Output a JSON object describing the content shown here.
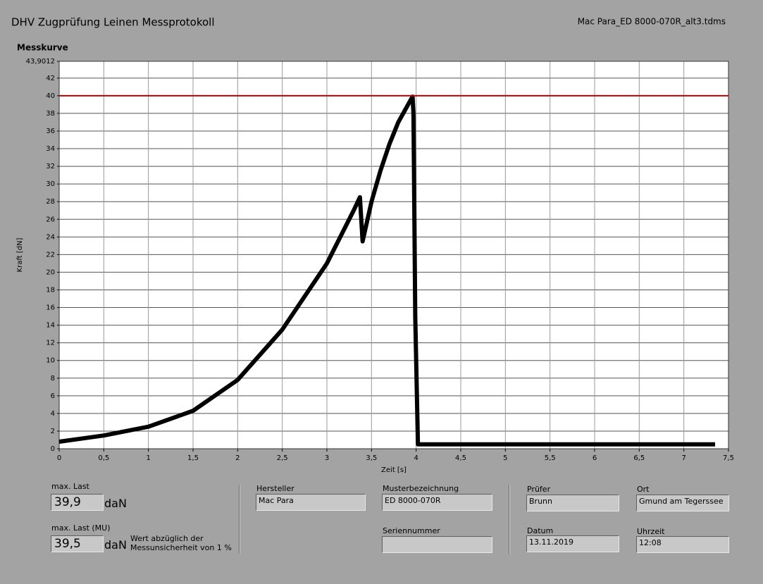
{
  "window": {
    "title": "DHV Zugprüfung Leinen Messprotokoll",
    "file": "Mac Para_ED 8000-070R_alt3.tdms"
  },
  "chart_data": {
    "type": "line",
    "title": "Messkurve",
    "x_label": "Zeit [s]",
    "y_label": "Kraft [dN]",
    "xlim": [
      0,
      7.5
    ],
    "ylim": [
      0,
      43.9012
    ],
    "xticks": [
      0,
      {
        "value": 0.5,
        "label": "0,5"
      },
      1,
      {
        "value": 1.5,
        "label": "1,5"
      },
      2,
      {
        "value": 2.5,
        "label": "2,5"
      },
      3,
      {
        "value": 3.5,
        "label": "3,5"
      },
      4,
      {
        "value": 4.5,
        "label": "4,5"
      },
      5,
      {
        "value": 5.5,
        "label": "5,5"
      },
      6,
      {
        "value": 6.5,
        "label": "6,5"
      },
      7,
      {
        "value": 7.5,
        "label": "7,5"
      }
    ],
    "yticks": [
      0,
      2,
      4,
      6,
      8,
      10,
      12,
      14,
      16,
      18,
      20,
      22,
      24,
      26,
      28,
      30,
      32,
      34,
      36,
      38,
      40,
      42,
      {
        "value": 43.9012,
        "label": "43,9012"
      }
    ],
    "grid": true,
    "series": [
      {
        "color": "#000000",
        "x": [
          0,
          0.5,
          1,
          1.5,
          2,
          2.5,
          3,
          3.3,
          3.37,
          3.4,
          3.5,
          3.6,
          3.7,
          3.8,
          3.96,
          3.97,
          3.99,
          4.02,
          4.5,
          5,
          6,
          7,
          7.35
        ],
        "values": [
          0.8,
          1.5,
          2.5,
          4.3,
          7.8,
          13.5,
          21,
          27,
          28.5,
          23.5,
          28,
          31.5,
          34.5,
          37,
          39.9,
          38,
          15,
          0.5,
          0.5,
          0.5,
          0.5,
          0.5,
          0.5
        ]
      },
      {
        "color": "#c00000",
        "x": [
          0,
          7.5
        ],
        "values": [
          40,
          40
        ]
      }
    ]
  },
  "results": {
    "max_label": "max. Last",
    "max_value": "39,9",
    "max_unit": "daN",
    "mu_label": "max. Last (MU)",
    "mu_value": "39,5",
    "mu_unit": "daN",
    "mu_note": "Wert abzüglich der Messunsicherheit von 1 %"
  },
  "fields": {
    "hersteller_label": "Hersteller",
    "hersteller": "Mac Para",
    "muster_label": "Musterbezeichnung",
    "muster": "ED 8000-070R",
    "serien_label": "Seriennummer",
    "pruefer_label": "Prüfer",
    "pruefer": "Brunn",
    "ort_label": "Ort",
    "ort": "Gmund am Tegerssee",
    "datum_label": "Datum",
    "datum": "13.11.2019",
    "uhrzeit_label": "Uhrzeit",
    "uhrzeit": "12:08"
  }
}
